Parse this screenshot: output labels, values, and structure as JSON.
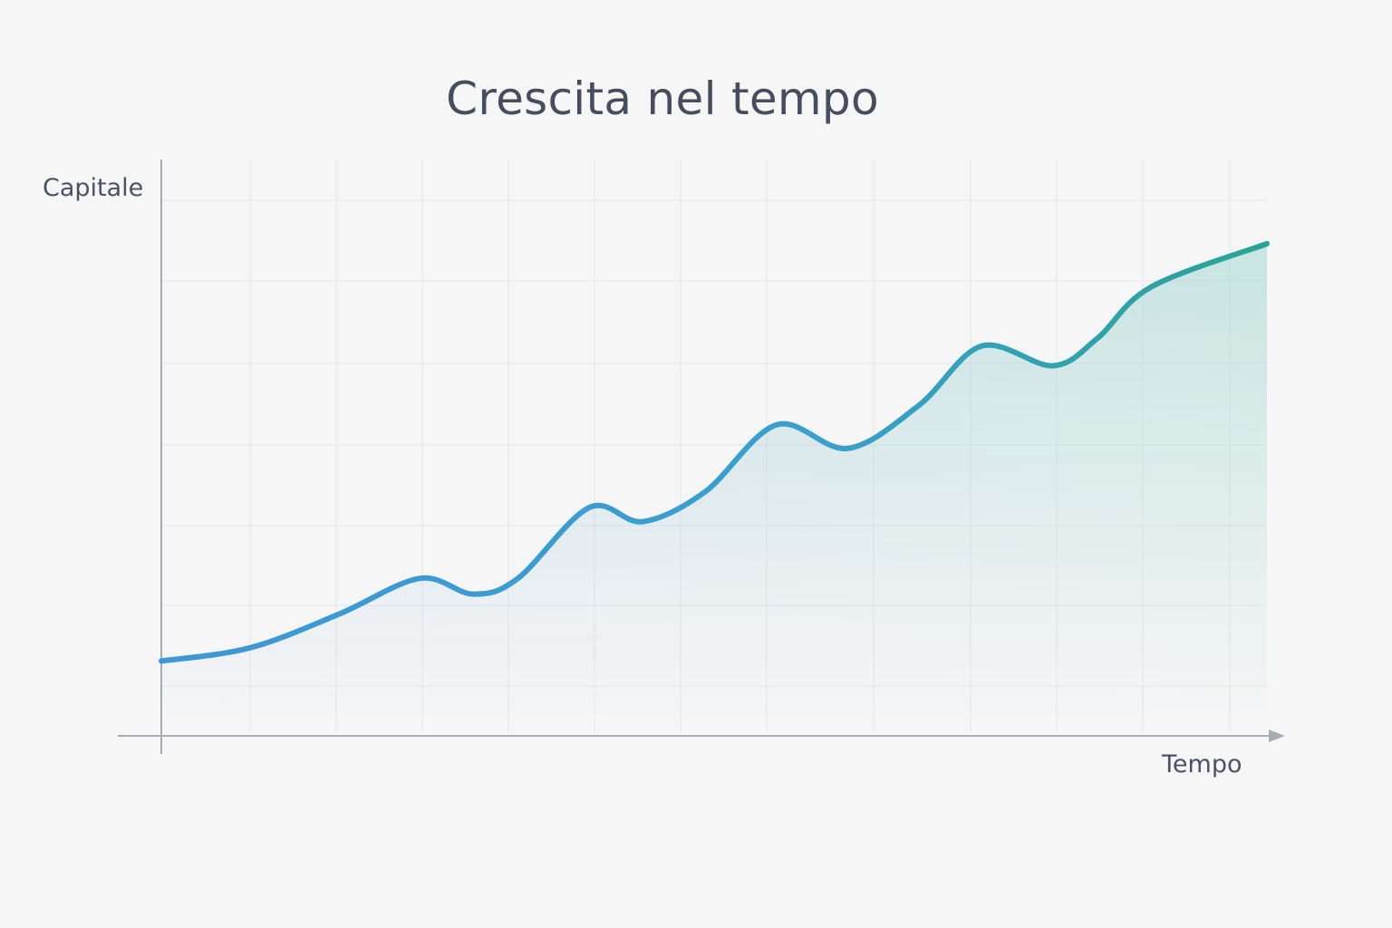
{
  "chart_data": {
    "type": "line",
    "title": "Crescita nel tempo",
    "xlabel": "Tempo",
    "ylabel": "Capitale",
    "grid": true,
    "legend": "none",
    "area_fill": true,
    "xlim": [
      0,
      12.4
    ],
    "ylim": [
      0,
      6.8
    ],
    "x": [
      0,
      1,
      2,
      2.9,
      3.5,
      4,
      4.8,
      5.4,
      6.1,
      6.9,
      7.7,
      8.5,
      9.2,
      10,
      10.5,
      11.1,
      12.4
    ],
    "series": [
      {
        "values": [
          0.95,
          1.12,
          1.55,
          2.0,
          1.8,
          2.0,
          2.9,
          2.72,
          3.1,
          3.95,
          3.65,
          4.2,
          4.95,
          4.7,
          5.05,
          5.7,
          6.25
        ]
      }
    ],
    "colors": {
      "line_start": "#3e97d6",
      "line_end": "#2aa396",
      "fill": "#8cb8d8",
      "grid": "#e4e6ea",
      "axis": "#a7acb6"
    }
  }
}
